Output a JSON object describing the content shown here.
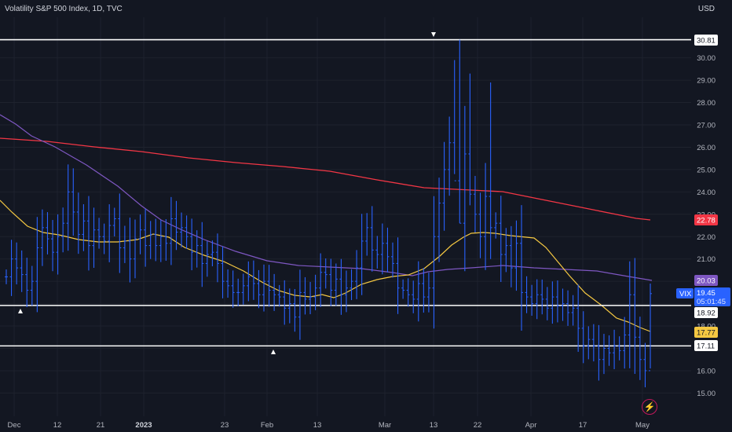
{
  "header": {
    "title": "Volatility S&P 500 Index, 1D, TVC",
    "currency": "USD"
  },
  "y_axis_ticks": [
    "15.00",
    "16.00",
    "17.00",
    "18.00",
    "19.00",
    "20.00",
    "21.00",
    "22.00",
    "23.00",
    "24.00",
    "25.00",
    "26.00",
    "27.00",
    "28.00",
    "29.00",
    "30.00"
  ],
  "x_axis_ticks": [
    {
      "label": "Dec",
      "bold": false
    },
    {
      "label": "12",
      "bold": false
    },
    {
      "label": "21",
      "bold": false
    },
    {
      "label": "2023",
      "bold": true
    },
    {
      "label": "23",
      "bold": false
    },
    {
      "label": "Feb",
      "bold": false
    },
    {
      "label": "13",
      "bold": false
    },
    {
      "label": "Mar",
      "bold": false
    },
    {
      "label": "13",
      "bold": false
    },
    {
      "label": "22",
      "bold": false
    },
    {
      "label": "Apr",
      "bold": false
    },
    {
      "label": "17",
      "bold": false
    },
    {
      "label": "May",
      "bold": false
    }
  ],
  "price_tags": {
    "resistance_high": "30.81",
    "sma200": "22.78",
    "sma50": "20.03",
    "symbol": "VIX",
    "last_price": "19.45",
    "countdown": "05:01:45",
    "level_mid": "18.92",
    "sma20": "17.77",
    "level_low": "17.11"
  },
  "colors": {
    "background": "#131722",
    "bars": "#2962ff",
    "sma200": "#f23645",
    "sma50": "#7e57c2",
    "sma20": "#f5c842",
    "levels": "#ffffff",
    "last_price_tag": "#2962ff"
  },
  "icons": {
    "marker_high": "down-triangle-icon",
    "marker_low": "up-triangle-icon",
    "logo": "tradingview-lightning-icon"
  },
  "chart_data": {
    "type": "ohlc",
    "title": "Volatility S&P 500 Index, 1D, TVC",
    "ylim": [
      14.6,
      31.7
    ],
    "horizontal_levels": [
      30.81,
      18.92,
      17.11
    ],
    "series": [
      {
        "name": "VIX",
        "values": [
          20.2,
          21.0,
          20.6,
          20.3,
          19.6,
          20.0,
          21.5,
          22.4,
          21.9,
          21.3,
          22.0,
          22.6,
          24.0,
          23.1,
          22.1,
          22.7,
          21.6,
          22.3,
          22.0,
          21.8,
          22.5,
          22.8,
          21.5,
          21.8,
          21.0,
          21.9,
          22.3,
          21.6,
          22.1,
          21.6,
          22.0,
          21.7,
          22.8,
          22.2,
          22.4,
          22.0,
          21.3,
          21.6,
          20.8,
          21.2,
          21.3,
          20.8,
          20.0,
          19.8,
          19.5,
          19.5,
          19.8,
          20.2,
          19.9,
          19.4,
          20.0,
          19.6,
          19.4,
          19.3,
          18.8,
          19.0,
          18.4,
          19.5,
          19.2,
          19.3,
          19.7,
          20.4,
          20.3,
          19.6,
          20.1,
          19.4,
          19.7,
          20.0,
          20.6,
          21.8,
          22.4,
          21.4,
          21.2,
          21.7,
          21.1,
          20.8,
          19.7,
          19.6,
          19.4,
          19.2,
          19.9,
          19.3,
          19.7,
          22.0,
          23.5,
          25.0,
          26.2,
          24.5,
          22.6,
          25.7,
          23.9,
          23.0,
          22.0,
          23.8,
          22.4,
          22.6,
          21.2,
          21.6,
          20.6,
          21.7,
          19.5,
          19.3,
          19.0,
          19.4,
          19.2,
          18.8,
          19.3,
          18.9,
          19.0,
          18.6,
          18.8,
          17.9,
          17.1,
          17.4,
          17.1,
          16.5,
          17.0,
          16.8,
          17.1,
          16.9,
          17.6,
          19.4,
          17.5,
          16.5,
          16.0,
          19.45
        ]
      },
      {
        "name": "SMA 200",
        "values": [
          25.9,
          23.5,
          22.78
        ]
      },
      {
        "name": "SMA 50",
        "values": [
          27.5,
          23.0,
          20.03
        ]
      },
      {
        "name": "SMA 20",
        "values": [
          23.8,
          20.0,
          17.77
        ]
      }
    ]
  }
}
